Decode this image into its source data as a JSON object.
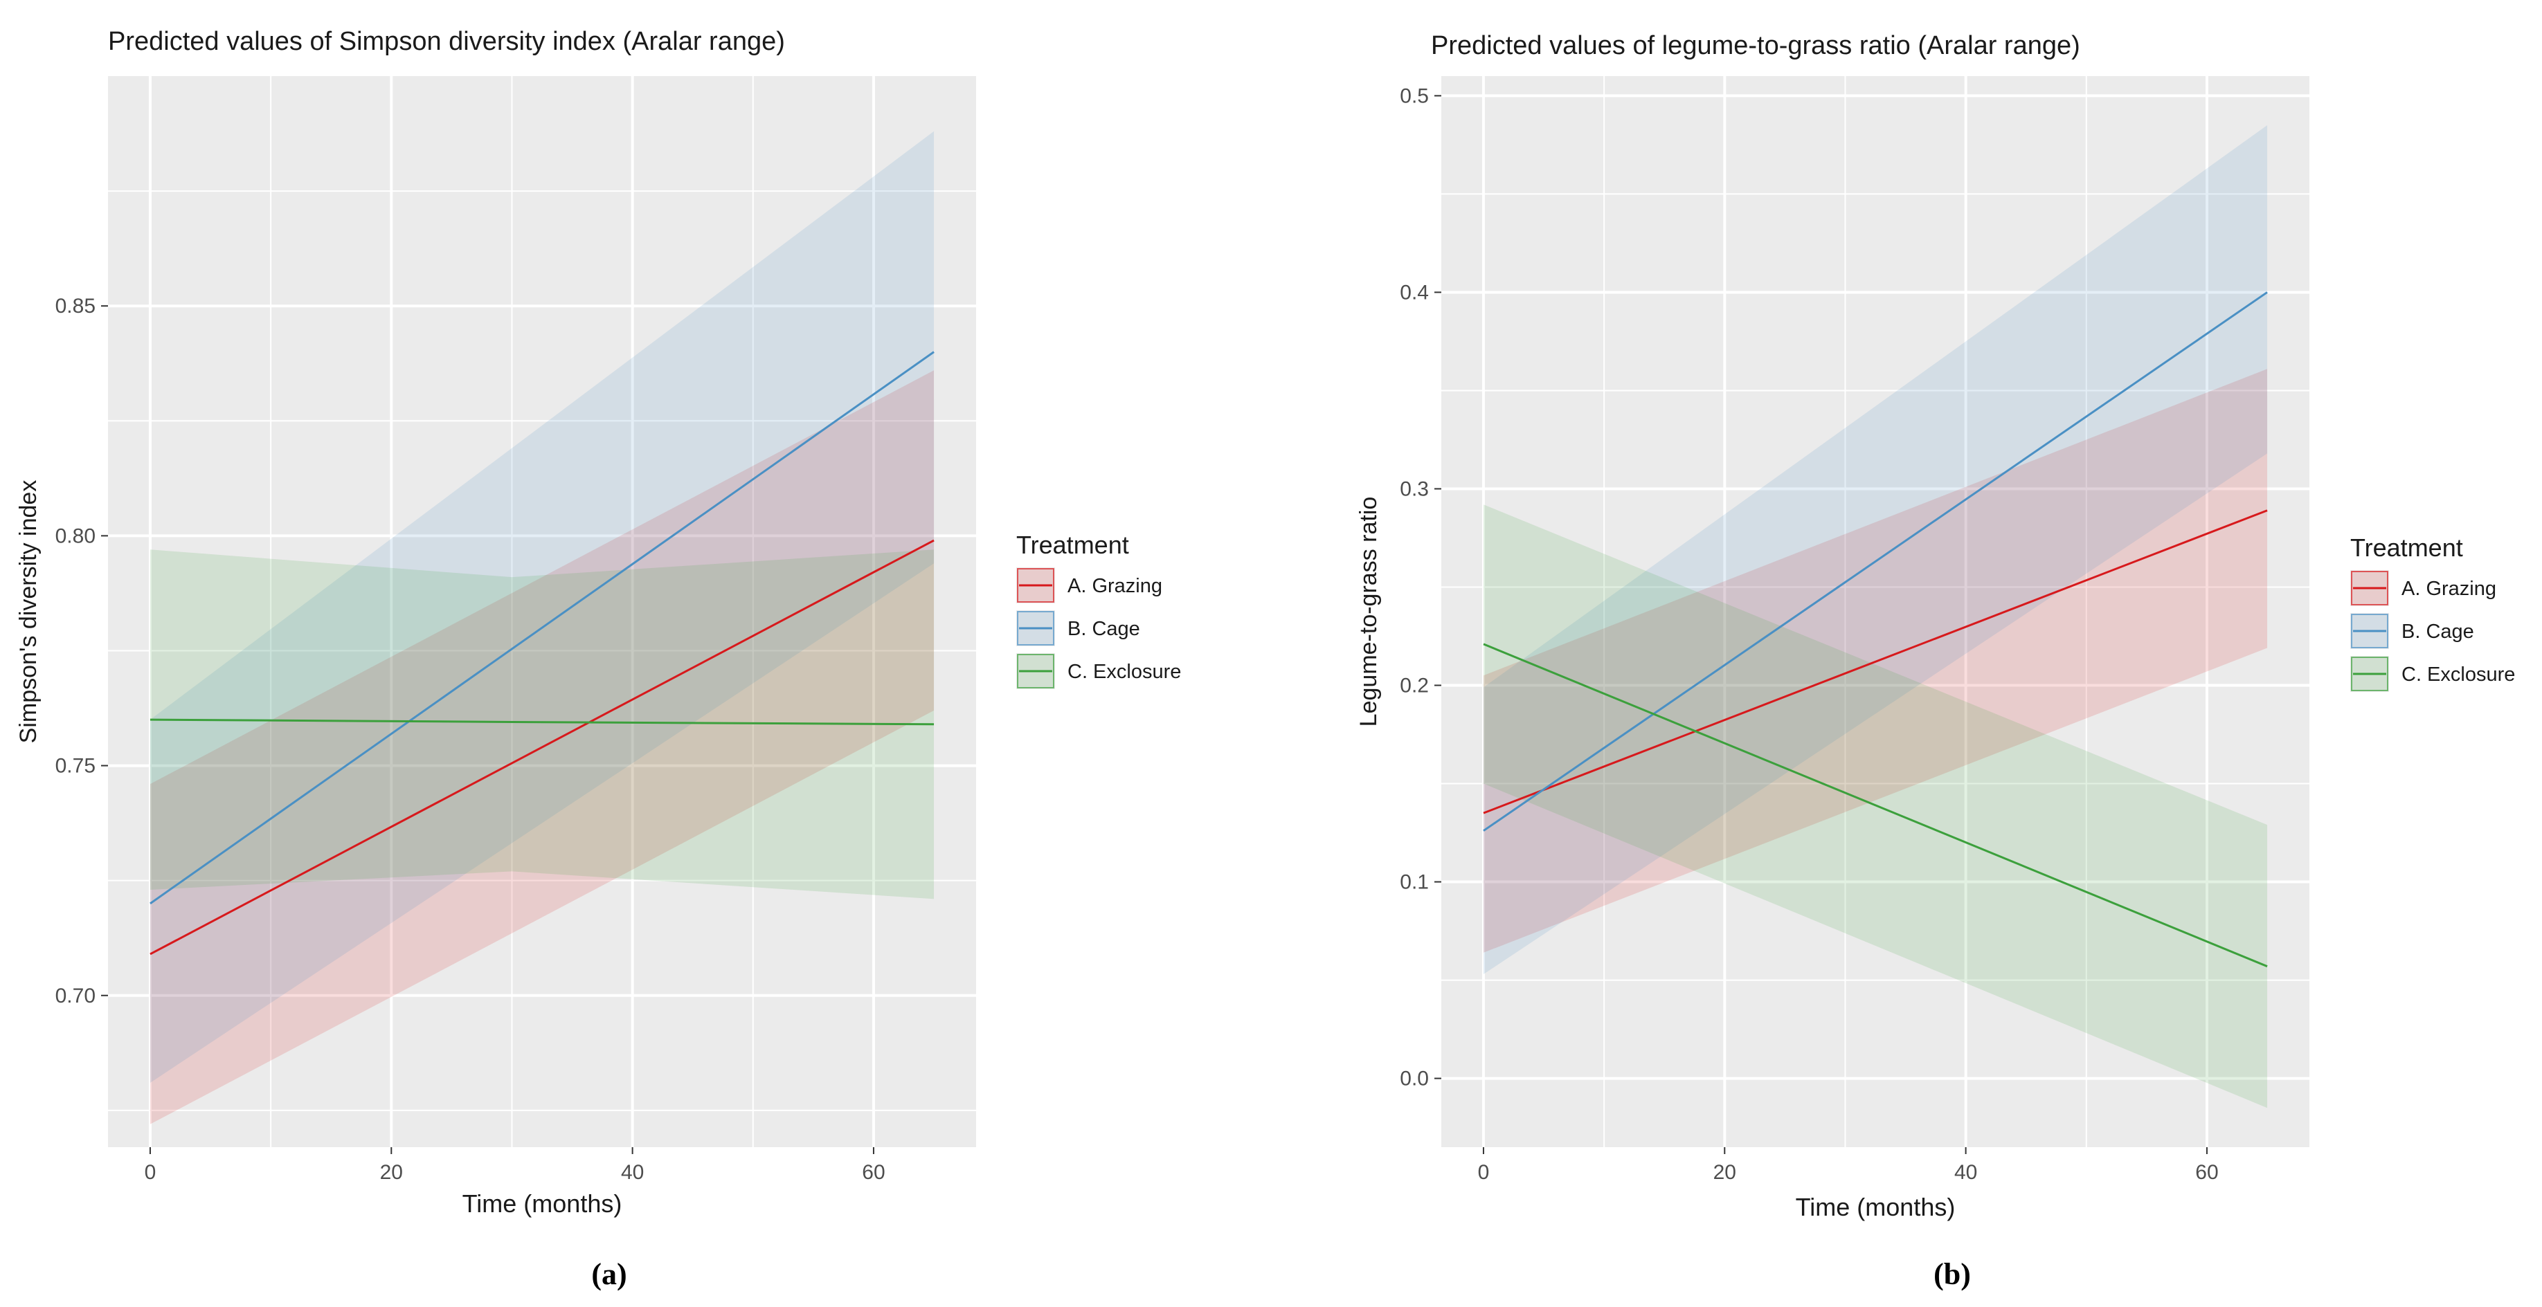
{
  "colors": {
    "grazing": "#d7191c",
    "cage": "#4a90c4",
    "exclosure": "#3ca03c",
    "panel_bg": "#ebebeb",
    "grid": "#ffffff"
  },
  "chart_data": [
    {
      "type": "line",
      "subfigure": "(a)",
      "title": "Predicted values of Simpson diversity index (Aralar range)",
      "xlabel": "Time (months)",
      "ylabel": "Simpson's diversity index",
      "xlim": [
        -3.5,
        68.5
      ],
      "ylim": [
        0.667,
        0.9
      ],
      "x_ticks": [
        0,
        20,
        40,
        60
      ],
      "y_ticks": [
        0.7,
        0.75,
        0.8,
        0.85
      ],
      "y_tick_labels": [
        "0.70",
        "0.75",
        "0.80",
        "0.85"
      ],
      "grid": true,
      "legend": {
        "title": "Treatment",
        "position": "right",
        "entries": [
          "A. Grazing",
          "B. Cage",
          "C. Exclosure"
        ]
      },
      "series": [
        {
          "name": "A. Grazing",
          "color_key": "grazing",
          "x": [
            0,
            65
          ],
          "y": [
            0.709,
            0.799
          ],
          "lower": [
            0.672,
            0.762
          ],
          "upper": [
            0.746,
            0.836
          ]
        },
        {
          "name": "B. Cage",
          "color_key": "cage",
          "x": [
            0,
            65
          ],
          "y": [
            0.72,
            0.84
          ],
          "lower": [
            0.681,
            0.794
          ],
          "upper": [
            0.76,
            0.888
          ]
        },
        {
          "name": "C. Exclosure",
          "color_key": "exclosure",
          "x": [
            0,
            30,
            65
          ],
          "y": [
            0.76,
            0.7595,
            0.759
          ],
          "lower": [
            0.723,
            0.727,
            0.721
          ],
          "upper": [
            0.797,
            0.791,
            0.797
          ]
        }
      ]
    },
    {
      "type": "line",
      "subfigure": "(b)",
      "title": "Predicted values of legume-to-grass ratio (Aralar range)",
      "xlabel": "Time (months)",
      "ylabel": "Legume-to-grass ratio",
      "xlim": [
        -3.5,
        68.5
      ],
      "ylim": [
        -0.035,
        0.51
      ],
      "x_ticks": [
        0,
        20,
        40,
        60
      ],
      "y_ticks": [
        0.0,
        0.1,
        0.2,
        0.3,
        0.4,
        0.5
      ],
      "y_tick_labels": [
        "0.0",
        "0.1",
        "0.2",
        "0.3",
        "0.4",
        "0.5"
      ],
      "grid": true,
      "legend": {
        "title": "Treatment",
        "position": "right",
        "entries": [
          "A. Grazing",
          "B. Cage",
          "C. Exclosure"
        ]
      },
      "series": [
        {
          "name": "A. Grazing",
          "color_key": "grazing",
          "x": [
            0,
            65
          ],
          "y": [
            0.135,
            0.289
          ],
          "lower": [
            0.064,
            0.219
          ],
          "upper": [
            0.205,
            0.361
          ]
        },
        {
          "name": "B. Cage",
          "color_key": "cage",
          "x": [
            0,
            65
          ],
          "y": [
            0.126,
            0.4
          ],
          "lower": [
            0.053,
            0.318
          ],
          "upper": [
            0.199,
            0.485
          ]
        },
        {
          "name": "C. Exclosure",
          "color_key": "exclosure",
          "x": [
            0,
            65
          ],
          "y": [
            0.221,
            0.057
          ],
          "lower": [
            0.15,
            -0.015
          ],
          "upper": [
            0.292,
            0.129
          ]
        }
      ]
    }
  ]
}
